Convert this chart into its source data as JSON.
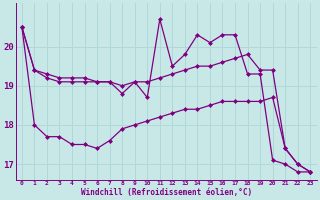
{
  "xlabel": "Windchill (Refroidissement éolien,°C)",
  "x": [
    0,
    1,
    2,
    3,
    4,
    5,
    6,
    7,
    8,
    9,
    10,
    11,
    12,
    13,
    14,
    15,
    16,
    17,
    18,
    19,
    20,
    21,
    22,
    23
  ],
  "y_main": [
    20.5,
    19.4,
    19.2,
    19.1,
    19.1,
    19.1,
    19.1,
    19.1,
    18.8,
    19.1,
    18.7,
    20.7,
    19.5,
    19.8,
    20.3,
    20.1,
    20.3,
    20.3,
    19.3,
    19.3,
    17.1,
    17.0,
    16.8,
    16.8
  ],
  "y_upper": [
    20.5,
    19.4,
    19.3,
    19.2,
    19.2,
    19.2,
    19.1,
    19.1,
    19.0,
    19.1,
    19.1,
    19.2,
    19.3,
    19.4,
    19.5,
    19.5,
    19.6,
    19.7,
    19.8,
    19.4,
    19.4,
    17.4,
    17.0,
    16.8
  ],
  "y_lower": [
    20.5,
    18.0,
    17.7,
    17.7,
    17.5,
    17.5,
    17.4,
    17.6,
    17.9,
    18.0,
    18.1,
    18.2,
    18.3,
    18.4,
    18.4,
    18.5,
    18.6,
    18.6,
    18.6,
    18.6,
    18.7,
    17.4,
    17.0,
    16.8
  ],
  "color": "#800080",
  "bg_color": "#c8e8e8",
  "grid_color": "#b0d8d8",
  "ylim": [
    16.6,
    21.1
  ],
  "yticks": [
    17,
    18,
    19,
    20
  ],
  "xticks": [
    0,
    1,
    2,
    3,
    4,
    5,
    6,
    7,
    8,
    9,
    10,
    11,
    12,
    13,
    14,
    15,
    16,
    17,
    18,
    19,
    20,
    21,
    22,
    23
  ]
}
